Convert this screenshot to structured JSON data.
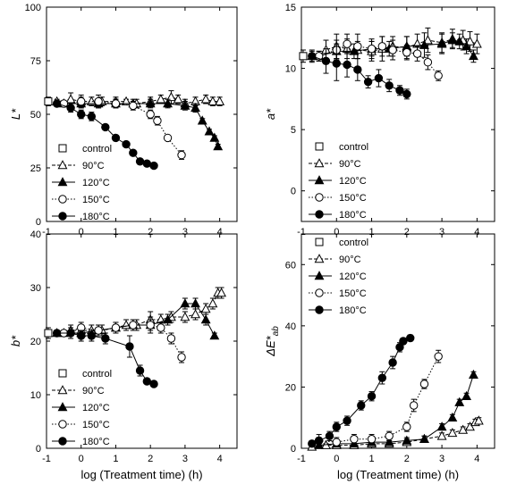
{
  "chart_data": [
    {
      "type": "line",
      "panel": "top-left",
      "ylabel": "L*",
      "xlabel": "",
      "xlim": [
        -1,
        4.5
      ],
      "ylim": [
        0,
        100
      ],
      "xticks": [
        "-1",
        "0",
        "1",
        "2",
        "3",
        "4"
      ],
      "yticks": [
        "0",
        "25",
        "50",
        "75",
        "100"
      ],
      "legend_position": "bottom-left",
      "series": [
        {
          "name": "control",
          "marker": "open-square",
          "line": "none",
          "x": [
            -0.95
          ],
          "y": [
            56
          ],
          "err": [
            2
          ]
        },
        {
          "name": "90°C",
          "marker": "open-triangle",
          "line": "dashed",
          "x": [
            -0.7,
            -0.3,
            0,
            0.3,
            0.6,
            1,
            1.3,
            1.6,
            2,
            2.3,
            2.6,
            2.8,
            3,
            3.3,
            3.6,
            3.8,
            4
          ],
          "y": [
            56,
            57,
            56,
            56,
            56,
            56,
            56,
            55,
            56,
            57,
            58,
            57,
            55,
            56,
            57,
            56,
            56
          ],
          "err": [
            1,
            3,
            2,
            2,
            2,
            2,
            1,
            2,
            2,
            2,
            3,
            2,
            2,
            2,
            2,
            2,
            2
          ]
        },
        {
          "name": "120°C",
          "marker": "filled-triangle",
          "line": "solid",
          "x": [
            -0.5,
            0,
            0.5,
            1,
            1.5,
            2,
            2.5,
            3,
            3.3,
            3.5,
            3.7,
            3.85,
            3.95
          ],
          "y": [
            55,
            55,
            55,
            55,
            55,
            55,
            55,
            54,
            53,
            47,
            42,
            39,
            35
          ],
          "err": [
            1,
            2,
            2,
            2,
            2,
            2,
            2,
            2,
            2,
            1,
            1,
            1,
            1
          ]
        },
        {
          "name": "150°C",
          "marker": "open-circle",
          "line": "dotted",
          "x": [
            -0.5,
            0,
            0.5,
            1,
            1.5,
            2,
            2.2,
            2.5,
            2.9
          ],
          "y": [
            55,
            56,
            56,
            55,
            54,
            50,
            47,
            39,
            31
          ],
          "err": [
            1,
            3,
            3,
            2,
            2,
            2,
            2,
            1,
            2
          ]
        },
        {
          "name": "180°C",
          "marker": "filled-circle",
          "line": "solid",
          "x": [
            -0.7,
            -0.3,
            0,
            0.3,
            0.7,
            1,
            1.3,
            1.5,
            1.7,
            1.9,
            2.1
          ],
          "y": [
            55,
            53,
            50,
            49,
            44,
            39,
            36,
            32,
            28,
            27,
            26
          ],
          "err": [
            1,
            2,
            2,
            2,
            1,
            1,
            1,
            1,
            1,
            1,
            1
          ]
        }
      ]
    },
    {
      "type": "line",
      "panel": "top-right",
      "ylabel": "a*",
      "xlabel": "",
      "xlim": [
        -1,
        4.5
      ],
      "ylim": [
        -2.5,
        15
      ],
      "xticks": [
        "-1",
        "0",
        "1",
        "2",
        "3",
        "4"
      ],
      "yticks": [
        "0",
        "5",
        "10",
        "15"
      ],
      "legend_position": "bottom-left",
      "series": [
        {
          "name": "control",
          "marker": "open-square",
          "line": "none",
          "x": [
            -0.95
          ],
          "y": [
            11
          ],
          "err": [
            0.5
          ]
        },
        {
          "name": "90°C",
          "marker": "open-triangle",
          "line": "dashed",
          "x": [
            -0.7,
            -0.3,
            0,
            0.3,
            0.6,
            1,
            1.3,
            1.6,
            2,
            2.3,
            2.6,
            3,
            3.3,
            3.6,
            3.8,
            4
          ],
          "y": [
            11,
            11.5,
            11.8,
            11.6,
            11.5,
            11.4,
            11.6,
            11.8,
            11.7,
            12,
            12.3,
            12.1,
            12.4,
            12.3,
            12.2,
            12
          ],
          "err": [
            0.5,
            0.8,
            1,
            0.8,
            0.7,
            0.8,
            1,
            0.8,
            0.9,
            0.8,
            1,
            0.8,
            0.8,
            0.8,
            0.8,
            0.8
          ]
        },
        {
          "name": "120°C",
          "marker": "filled-triangle",
          "line": "solid",
          "x": [
            -0.5,
            0,
            0.5,
            1,
            1.5,
            2,
            2.5,
            3,
            3.3,
            3.5,
            3.7,
            3.9
          ],
          "y": [
            11,
            11.4,
            11.4,
            11.6,
            11.6,
            11.8,
            11.9,
            12,
            12.3,
            12.2,
            11.8,
            11
          ],
          "err": [
            0.4,
            0.6,
            0.6,
            0.6,
            0.6,
            0.8,
            1,
            0.8,
            0.6,
            0.6,
            0.6,
            0.5
          ]
        },
        {
          "name": "150°C",
          "marker": "open-circle",
          "line": "dotted",
          "x": [
            -0.5,
            0,
            0.3,
            0.6,
            1,
            1.3,
            1.6,
            2,
            2.3,
            2.6,
            2.9
          ],
          "y": [
            11,
            11.5,
            12,
            11.8,
            11.6,
            11.8,
            11.5,
            11.3,
            11.2,
            10.5,
            9.4
          ],
          "err": [
            0.4,
            0.8,
            0.8,
            1,
            0.8,
            0.8,
            0.8,
            0.6,
            0.6,
            0.6,
            0.4
          ]
        },
        {
          "name": "180°C",
          "marker": "filled-circle",
          "line": "solid",
          "x": [
            -0.7,
            -0.3,
            0,
            0.3,
            0.6,
            0.9,
            1.2,
            1.5,
            1.8,
            2
          ],
          "y": [
            11,
            10.6,
            10.4,
            10.3,
            9.9,
            8.9,
            9.2,
            8.6,
            8.2,
            7.9
          ],
          "err": [
            0.4,
            1,
            1.4,
            1,
            0.9,
            0.5,
            0.7,
            0.5,
            0.4,
            0.4
          ]
        }
      ]
    },
    {
      "type": "line",
      "panel": "bottom-left",
      "ylabel": "b*",
      "xlabel": "log (Treatment time) (h)",
      "xlim": [
        -1,
        4.5
      ],
      "ylim": [
        0,
        40
      ],
      "xticks": [
        "-1",
        "0",
        "1",
        "2",
        "3",
        "4"
      ],
      "yticks": [
        "0",
        "10",
        "20",
        "30",
        "40"
      ],
      "legend_position": "bottom-left",
      "series": [
        {
          "name": "control",
          "marker": "open-square",
          "line": "none",
          "x": [
            -0.95
          ],
          "y": [
            21.5
          ],
          "err": [
            1
          ]
        },
        {
          "name": "90°C",
          "marker": "open-triangle",
          "line": "dashed",
          "x": [
            -0.7,
            -0.3,
            0,
            0.3,
            0.6,
            1,
            1.3,
            1.6,
            2,
            2.3,
            2.6,
            3,
            3.3,
            3.6,
            3.8,
            3.95,
            4.05
          ],
          "y": [
            21.5,
            22,
            22,
            22,
            22,
            22.5,
            23,
            23,
            24,
            24,
            24.5,
            24.5,
            25,
            26,
            27,
            29,
            29
          ],
          "err": [
            0.5,
            1,
            1,
            1,
            1,
            1,
            1,
            1,
            1.5,
            1,
            1,
            1,
            1,
            1,
            1,
            1,
            1
          ]
        },
        {
          "name": "120°C",
          "marker": "filled-triangle",
          "line": "solid",
          "x": [
            -0.5,
            0,
            0.5,
            1,
            1.5,
            2,
            2.5,
            3,
            3.3,
            3.6,
            3.85
          ],
          "y": [
            21.5,
            21.5,
            22,
            22.5,
            23,
            23,
            24,
            27,
            27,
            24,
            21
          ],
          "err": [
            0.5,
            1,
            1,
            1,
            1,
            1.5,
            1,
            1,
            1,
            1,
            0.5
          ]
        },
        {
          "name": "150°C",
          "marker": "open-circle",
          "line": "dotted",
          "x": [
            -0.5,
            0,
            0.5,
            1,
            1.5,
            2,
            2.3,
            2.6,
            2.9
          ],
          "y": [
            21.5,
            22.5,
            22,
            22.5,
            23,
            23,
            22.5,
            20.5,
            17
          ],
          "err": [
            0.5,
            1,
            1,
            1,
            1,
            1,
            1,
            1,
            1
          ]
        },
        {
          "name": "180°C",
          "marker": "filled-circle",
          "line": "solid",
          "x": [
            -0.7,
            -0.3,
            0,
            0.3,
            0.7,
            1.4,
            1.7,
            1.9,
            2.1
          ],
          "y": [
            21.5,
            21.5,
            21,
            21,
            20.5,
            19,
            14.5,
            12.5,
            12
          ],
          "err": [
            0.5,
            1,
            1,
            1,
            1,
            2,
            1,
            0.5,
            0.5
          ]
        }
      ]
    },
    {
      "type": "line",
      "panel": "bottom-right",
      "ylabel": "ΔE*ab",
      "xlabel": "log (Treatment time) (h)",
      "xlim": [
        -1,
        4.5
      ],
      "ylim": [
        0,
        70
      ],
      "xticks": [
        "-1",
        "0",
        "1",
        "2",
        "3",
        "4"
      ],
      "yticks": [
        "0",
        "20",
        "40",
        "60"
      ],
      "legend_position": "top-left",
      "series": [
        {
          "name": "control",
          "marker": "open-square",
          "line": "none",
          "x": [],
          "y": [],
          "err": []
        },
        {
          "name": "90°C",
          "marker": "open-triangle",
          "line": "dashed",
          "x": [
            -0.7,
            -0.3,
            0,
            0.5,
            1,
            1.5,
            2,
            2.5,
            3,
            3.3,
            3.6,
            3.8,
            3.95,
            4.05
          ],
          "y": [
            0.5,
            1,
            1,
            1,
            1.5,
            1.5,
            2,
            3,
            4,
            5,
            6,
            7,
            8.5,
            9
          ],
          "err": [
            0.5,
            0.5,
            1,
            1,
            1,
            1,
            1,
            1,
            1,
            1,
            1,
            1,
            1,
            1
          ]
        },
        {
          "name": "120°C",
          "marker": "filled-triangle",
          "line": "solid",
          "x": [
            -0.5,
            0,
            0.5,
            1,
            1.5,
            2,
            2.5,
            3,
            3.3,
            3.5,
            3.7,
            3.9
          ],
          "y": [
            1,
            1.5,
            1.5,
            2,
            2,
            2.5,
            3,
            7,
            10,
            15,
            17,
            24
          ],
          "err": [
            0.5,
            1,
            1,
            1,
            1,
            1,
            1,
            1,
            1,
            1,
            1,
            1
          ]
        },
        {
          "name": "150°C",
          "marker": "open-circle",
          "line": "dotted",
          "x": [
            -0.5,
            0,
            0.5,
            1,
            1.5,
            2,
            2.2,
            2.5,
            2.9
          ],
          "y": [
            2.5,
            2,
            3,
            3,
            4,
            7,
            14,
            21,
            30
          ],
          "err": [
            2,
            1.5,
            1.5,
            1.5,
            1.5,
            1.5,
            2,
            1.5,
            2
          ]
        },
        {
          "name": "180°C",
          "marker": "filled-circle",
          "line": "solid",
          "x": [
            -0.7,
            -0.5,
            -0.2,
            0,
            0.3,
            0.7,
            1,
            1.3,
            1.6,
            1.8,
            1.9,
            2.1
          ],
          "y": [
            1.5,
            2.5,
            4,
            7,
            9,
            14,
            17,
            23,
            28,
            33,
            35,
            36
          ],
          "err": [
            1,
            1,
            1.5,
            1.5,
            1.5,
            1.5,
            1.5,
            2,
            2,
            1.5,
            1,
            1
          ]
        }
      ]
    }
  ]
}
